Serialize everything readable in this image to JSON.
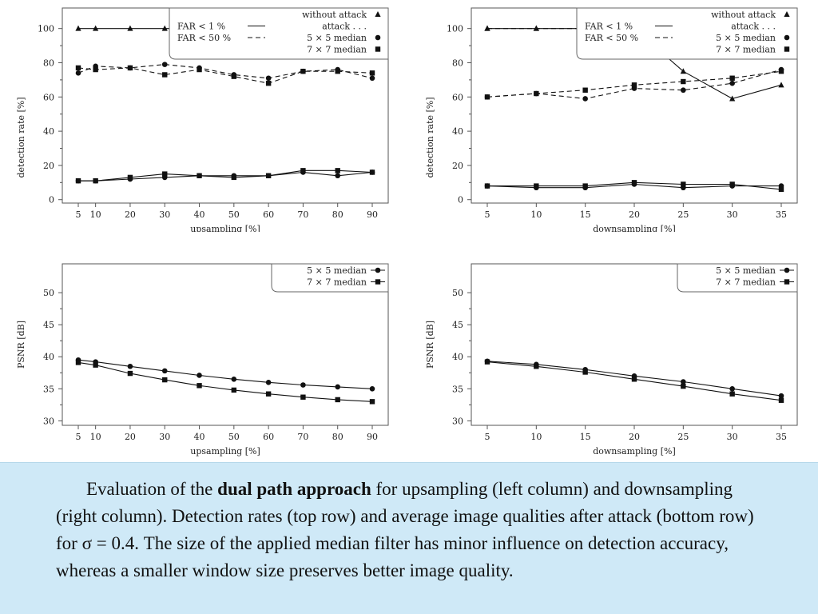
{
  "chart_data": [
    {
      "type": "line",
      "id": "detection-upsampling",
      "xlabel": "upsampling [%]",
      "ylabel": "detection rate [%]",
      "x": [
        5,
        10,
        20,
        30,
        40,
        50,
        60,
        70,
        80,
        90
      ],
      "xticks": [
        5,
        10,
        20,
        30,
        40,
        50,
        60,
        70,
        80,
        90
      ],
      "yticks": [
        0,
        20,
        40,
        60,
        80,
        100
      ],
      "ylim": [
        -2,
        112
      ],
      "grid": false,
      "legend": {
        "placement": "top-right",
        "rows": [
          {
            "left": "",
            "right": "without attack",
            "marker": "triangle",
            "line": "none"
          },
          {
            "left": "FAR <  1 %",
            "right": "attack . . .",
            "marker": "none",
            "line": "solid"
          },
          {
            "left": "FAR < 50 %",
            "right": "5 × 5 median",
            "marker": "circle",
            "line": "dashed"
          },
          {
            "left": "",
            "right": "7 × 7 median",
            "marker": "square",
            "line": "none"
          }
        ]
      },
      "series": [
        {
          "marker": "triangle",
          "dash": "solid",
          "values": [
            100,
            100,
            100,
            100,
            100,
            100,
            100,
            100,
            100,
            100
          ]
        },
        {
          "marker": "circle",
          "dash": "dashed",
          "values": [
            74,
            78,
            77,
            79,
            77,
            73,
            71,
            75,
            76,
            71
          ]
        },
        {
          "marker": "square",
          "dash": "dashed",
          "values": [
            77,
            76,
            77,
            73,
            76,
            72,
            68,
            75,
            75,
            74
          ]
        },
        {
          "marker": "circle",
          "dash": "solid",
          "values": [
            11,
            11,
            12,
            13,
            14,
            14,
            14,
            16,
            14,
            16
          ]
        },
        {
          "marker": "square",
          "dash": "solid",
          "values": [
            11,
            11,
            13,
            15,
            14,
            13,
            14,
            17,
            17,
            16
          ]
        }
      ]
    },
    {
      "type": "line",
      "id": "detection-downsampling",
      "xlabel": "downsampling [%]",
      "ylabel": "detection rate [%]",
      "x": [
        5,
        10,
        15,
        20,
        25,
        30,
        35
      ],
      "xticks": [
        5,
        10,
        15,
        20,
        25,
        30,
        35
      ],
      "yticks": [
        0,
        20,
        40,
        60,
        80,
        100
      ],
      "ylim": [
        -2,
        112
      ],
      "grid": false,
      "legend": {
        "placement": "top-right",
        "rows": [
          {
            "left": "",
            "right": "without attack",
            "marker": "triangle",
            "line": "none"
          },
          {
            "left": "FAR <  1 %",
            "right": "attack . . .",
            "marker": "none",
            "line": "solid"
          },
          {
            "left": "FAR < 50 %",
            "right": "5 × 5 median",
            "marker": "circle",
            "line": "dashed"
          },
          {
            "left": "",
            "right": "7 × 7 median",
            "marker": "square",
            "line": "none"
          }
        ]
      },
      "series": [
        {
          "marker": "triangle",
          "dash": "dashed",
          "values": [
            100,
            100,
            100,
            100,
            100,
            100,
            100
          ]
        },
        {
          "marker": "triangle",
          "dash": "solid",
          "values": [
            100,
            100,
            100,
            100,
            75,
            59,
            67
          ]
        },
        {
          "marker": "circle",
          "dash": "dashed",
          "values": [
            60,
            62,
            59,
            65,
            64,
            68,
            76
          ]
        },
        {
          "marker": "square",
          "dash": "dashed",
          "values": [
            60,
            62,
            64,
            67,
            69,
            71,
            75
          ]
        },
        {
          "marker": "circle",
          "dash": "solid",
          "values": [
            8,
            7,
            7,
            9,
            7,
            8,
            8
          ]
        },
        {
          "marker": "square",
          "dash": "solid",
          "values": [
            8,
            8,
            8,
            10,
            9,
            9,
            6
          ]
        }
      ]
    },
    {
      "type": "line",
      "id": "psnr-upsampling",
      "xlabel": "upsampling [%]",
      "ylabel": "PSNR [dB]",
      "x": [
        5,
        10,
        20,
        30,
        40,
        50,
        60,
        70,
        80,
        90
      ],
      "xticks": [
        5,
        10,
        20,
        30,
        40,
        50,
        60,
        70,
        80,
        90
      ],
      "yticks": [
        30,
        35,
        40,
        45,
        50
      ],
      "ylim": [
        29.3,
        54.5
      ],
      "grid": false,
      "legend": {
        "placement": "top-right",
        "rows": [
          {
            "left": "",
            "right": "5 × 5 median",
            "marker": "circle",
            "line": "solid"
          },
          {
            "left": "",
            "right": "7 × 7 median",
            "marker": "square",
            "line": "solid"
          }
        ]
      },
      "series": [
        {
          "name": "5 × 5 median",
          "marker": "circle",
          "dash": "solid",
          "values": [
            39.5,
            39.2,
            38.5,
            37.8,
            37.1,
            36.5,
            36.0,
            35.6,
            35.3,
            35.0
          ]
        },
        {
          "name": "7 × 7 median",
          "marker": "square",
          "dash": "solid",
          "values": [
            39.1,
            38.7,
            37.4,
            36.4,
            35.5,
            34.8,
            34.2,
            33.7,
            33.3,
            33.0
          ]
        }
      ]
    },
    {
      "type": "line",
      "id": "psnr-downsampling",
      "xlabel": "downsampling [%]",
      "ylabel": "PSNR [dB]",
      "x": [
        5,
        10,
        15,
        20,
        25,
        30,
        35
      ],
      "xticks": [
        5,
        10,
        15,
        20,
        25,
        30,
        35
      ],
      "yticks": [
        30,
        35,
        40,
        45,
        50
      ],
      "ylim": [
        29.3,
        54.5
      ],
      "grid": false,
      "legend": {
        "placement": "top-right",
        "rows": [
          {
            "left": "",
            "right": "5 × 5 median",
            "marker": "circle",
            "line": "solid"
          },
          {
            "left": "",
            "right": "7 × 7 median",
            "marker": "square",
            "line": "solid"
          }
        ]
      },
      "series": [
        {
          "name": "5 × 5 median",
          "marker": "circle",
          "dash": "solid",
          "values": [
            39.3,
            38.8,
            38.0,
            37.0,
            36.1,
            35.0,
            33.9
          ]
        },
        {
          "name": "7 × 7 median",
          "marker": "square",
          "dash": "solid",
          "values": [
            39.2,
            38.5,
            37.6,
            36.5,
            35.4,
            34.2,
            33.2
          ]
        }
      ]
    }
  ],
  "caption": {
    "before": "Evaluation of the ",
    "bold": "dual path approach",
    "after": " for upsampling (left column) and downsampling (right column). Detection rates (top row) and average image qualities after attack (bottom row) for σ = 0.4. The size of the applied median filter has minor influence on detection accuracy, whereas a smaller window size preserves better image quality."
  },
  "colors": {
    "ink": "#111111",
    "caption_background": "#cfe9f7"
  }
}
